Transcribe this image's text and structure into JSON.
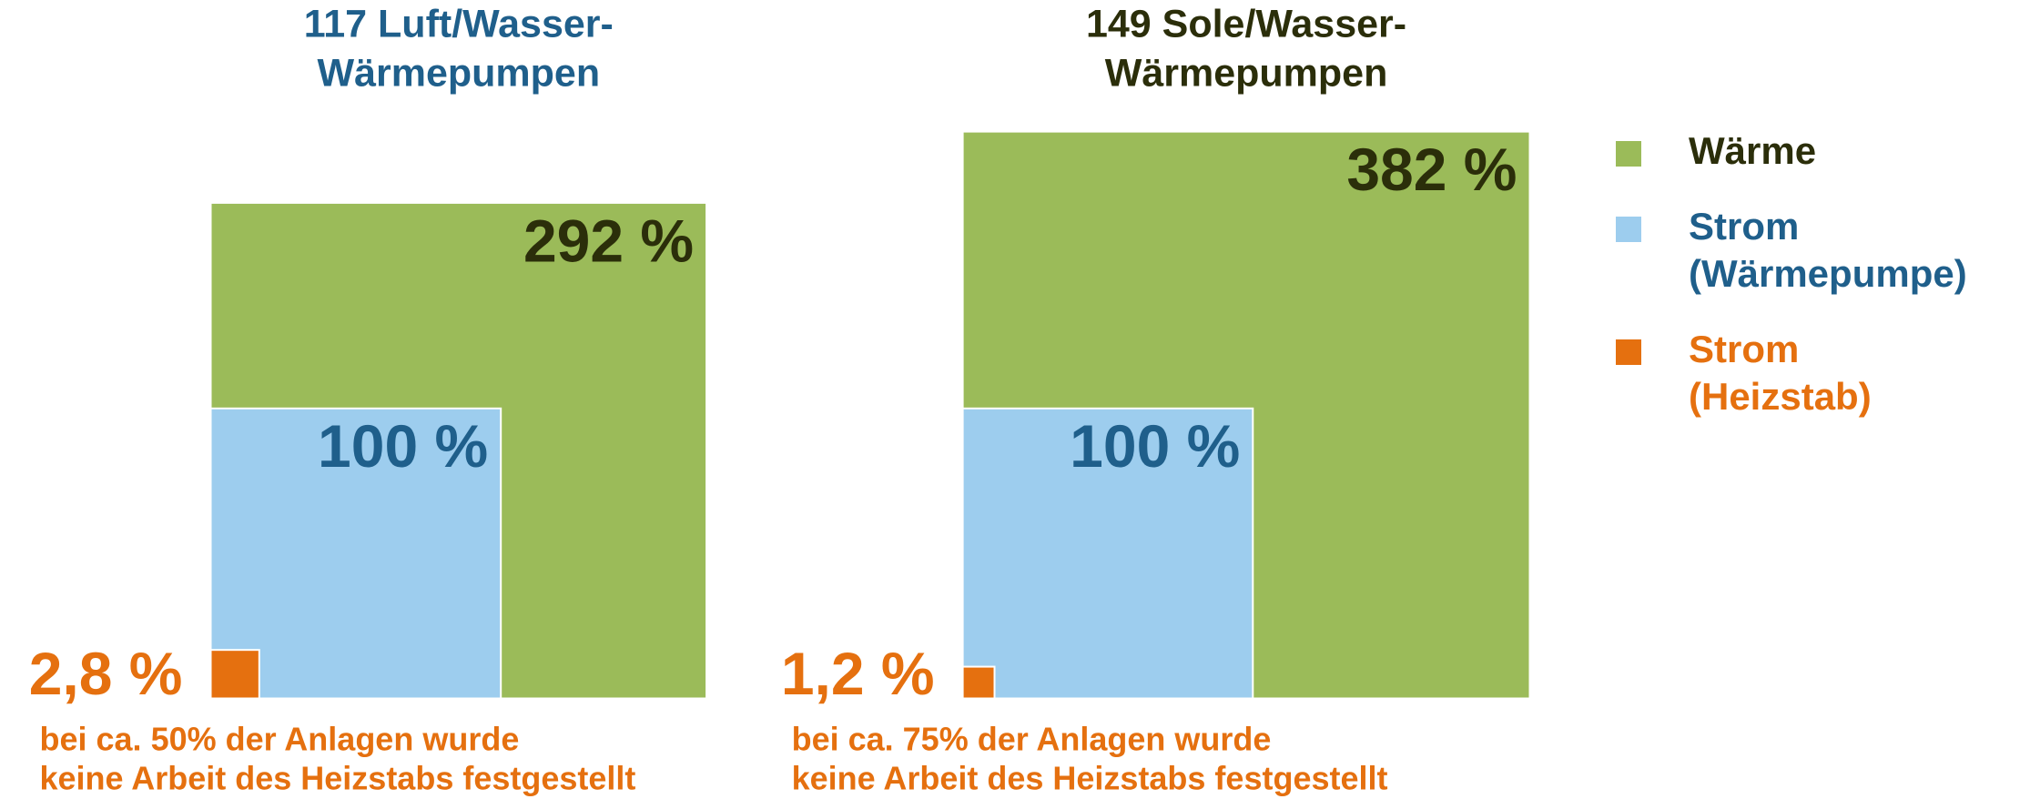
{
  "chart_data": {
    "type": "nested-squares",
    "categories": [
      [
        "117 Luft/Wasser-",
        "Wärmepumpen"
      ],
      [
        "149 Sole/Wasser-",
        "Wärmepumpen"
      ]
    ],
    "category_colors": [
      "#1f5f8b",
      "#2b2e0a"
    ],
    "series": [
      {
        "name": [
          "Wärme"
        ],
        "color": "#9bbb59",
        "text_color": "#2b2e0a",
        "values": [
          292,
          382
        ],
        "value_labels": [
          "292 %",
          "382 %"
        ]
      },
      {
        "name": [
          "Strom",
          "(Wärmepumpe)"
        ],
        "color": "#9dcdee",
        "text_color": "#1f5f8b",
        "values": [
          100,
          100
        ],
        "value_labels": [
          "100 %",
          "100 %"
        ]
      },
      {
        "name": [
          "Strom",
          "(Heizstab)"
        ],
        "color": "#e5700f",
        "text_color": "#e5700f",
        "values": [
          2.8,
          1.2
        ],
        "value_labels": [
          "2,8 %",
          "1,2 %"
        ]
      }
    ],
    "annotations": [
      [
        "bei ca. 50% der Anlagen wurde",
        "keine Arbeit des Heizstabs festgestellt"
      ],
      [
        "bei ca. 75% der Anlagen wurde",
        "keine Arbeit des Heizstabs festgestellt"
      ]
    ]
  }
}
